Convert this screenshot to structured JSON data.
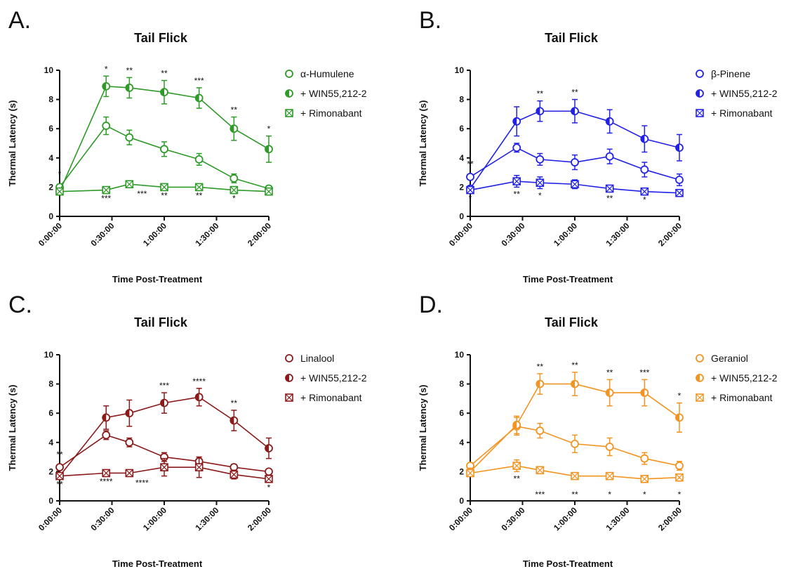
{
  "chart_data": [
    {
      "type": "line",
      "panel_label": "A.",
      "title": "Tail Flick",
      "xlabel": "Time Post-Treatment",
      "ylabel": "Thermal Latency (s)",
      "ylim": [
        0,
        10
      ],
      "yticks": [
        "0",
        "2",
        "4",
        "6",
        "8",
        "10"
      ],
      "xticks": [
        "0:00:00",
        "0:30:00",
        "1:00:00",
        "1:30:00",
        "2:00:00"
      ],
      "xlim_minutes": [
        0,
        120
      ],
      "color": "#2e9a28",
      "grid": false,
      "legend_position": "right",
      "series": [
        {
          "name": "α-Humulene",
          "marker": "open-circle",
          "x": [
            0,
            8,
            12,
            18,
            24,
            30,
            36
          ],
          "y": [
            2.0,
            6.2,
            5.4,
            4.6,
            3.9,
            2.6,
            1.9
          ],
          "err": [
            0.1,
            0.6,
            0.5,
            0.5,
            0.4,
            0.3,
            0.1
          ]
        },
        {
          "name": "+ WIN55,212-2",
          "marker": "half-filled-circle",
          "x": [
            0,
            8,
            12,
            18,
            24,
            30,
            36
          ],
          "y": [
            1.7,
            8.9,
            8.8,
            8.5,
            8.1,
            6.0,
            4.6
          ],
          "err": [
            0.2,
            0.7,
            0.7,
            0.8,
            0.7,
            0.8,
            0.9
          ]
        },
        {
          "name": "+ Rimonabant",
          "marker": "crossed-square",
          "x": [
            0,
            8,
            12,
            18,
            24,
            30,
            36
          ],
          "y": [
            1.7,
            1.8,
            2.2,
            2.0,
            2.0,
            1.8,
            1.7
          ],
          "err": [
            0.1,
            0.1,
            0.1,
            0.1,
            0.1,
            0.1,
            0.1
          ]
        }
      ],
      "annotations": [
        {
          "x": 0,
          "text": "*",
          "position": "above"
        },
        {
          "x": 8,
          "text": "*",
          "position": "top"
        },
        {
          "x": 12,
          "text": "**",
          "position": "top"
        },
        {
          "x": 18,
          "text": "**",
          "position": "top"
        },
        {
          "x": 24,
          "text": "***",
          "position": "top"
        },
        {
          "x": 30,
          "text": "**",
          "position": "top"
        },
        {
          "x": 36,
          "text": "*",
          "position": "top"
        },
        {
          "x": 12,
          "text": "***",
          "position": "mid"
        },
        {
          "x": 8,
          "text": "***",
          "position": "bottom"
        },
        {
          "x": 18,
          "text": "**",
          "position": "bottom"
        },
        {
          "x": 24,
          "text": "**",
          "position": "bottom"
        },
        {
          "x": 30,
          "text": "*",
          "position": "bottom"
        }
      ]
    },
    {
      "type": "line",
      "panel_label": "B.",
      "title": "Tail Flick",
      "xlabel": "Time Post-Treatment",
      "ylabel": "Thermal Latency (s)",
      "ylim": [
        0,
        10
      ],
      "yticks": [
        "0",
        "2",
        "4",
        "6",
        "8",
        "10"
      ],
      "xticks": [
        "0:00:00",
        "0:30:00",
        "1:00:00",
        "1:30:00",
        "2:00:00"
      ],
      "color": "#2222e6",
      "grid": false,
      "legend_position": "right",
      "series": [
        {
          "name": "β-Pinene",
          "marker": "open-circle",
          "x": [
            0,
            8,
            12,
            18,
            24,
            30,
            36
          ],
          "y": [
            2.7,
            4.7,
            3.9,
            3.7,
            4.1,
            3.2,
            2.5
          ],
          "err": [
            0.1,
            0.3,
            0.4,
            0.5,
            0.5,
            0.5,
            0.4
          ]
        },
        {
          "name": "+ WIN55,212-2",
          "marker": "half-filled-circle",
          "x": [
            0,
            8,
            12,
            18,
            24,
            30,
            36
          ],
          "y": [
            1.9,
            6.5,
            7.2,
            7.2,
            6.5,
            5.3,
            4.7
          ],
          "err": [
            0.1,
            1.0,
            0.7,
            0.8,
            0.8,
            0.9,
            0.9
          ]
        },
        {
          "name": "+ Rimonabant",
          "marker": "crossed-square",
          "x": [
            0,
            8,
            12,
            18,
            24,
            30,
            36
          ],
          "y": [
            1.8,
            2.4,
            2.3,
            2.2,
            1.9,
            1.7,
            1.6
          ],
          "err": [
            0.1,
            0.4,
            0.4,
            0.3,
            0.2,
            0.1,
            0.1
          ]
        }
      ],
      "annotations": [
        {
          "x": 0,
          "text": "**",
          "position": "above"
        },
        {
          "x": 12,
          "text": "**",
          "position": "top"
        },
        {
          "x": 18,
          "text": "**",
          "position": "top"
        },
        {
          "x": 0,
          "text": "*",
          "position": "bottom"
        },
        {
          "x": 8,
          "text": "**",
          "position": "bottom"
        },
        {
          "x": 12,
          "text": "*",
          "position": "bottom"
        },
        {
          "x": 24,
          "text": "**",
          "position": "bottom"
        },
        {
          "x": 30,
          "text": "*",
          "position": "bottom"
        }
      ]
    },
    {
      "type": "line",
      "panel_label": "C.",
      "title": "Tail Flick",
      "xlabel": "Time Post-Treatment",
      "ylabel": "Thermal Latency (s)",
      "ylim": [
        0,
        10
      ],
      "yticks": [
        "0",
        "2",
        "4",
        "6",
        "8",
        "10"
      ],
      "xticks": [
        "0:00:00",
        "0:30:00",
        "1:00:00",
        "1:30:00",
        "2:00:00"
      ],
      "color": "#8b1a1a",
      "grid": false,
      "legend_position": "right",
      "series": [
        {
          "name": "Linalool",
          "marker": "open-circle",
          "x": [
            0,
            8,
            12,
            18,
            24,
            30,
            36
          ],
          "y": [
            2.3,
            4.5,
            4.0,
            3.0,
            2.7,
            2.3,
            2.0
          ],
          "err": [
            0.1,
            0.3,
            0.3,
            0.3,
            0.3,
            0.2,
            0.1
          ]
        },
        {
          "name": "+ WIN55,212-2",
          "marker": "half-filled-circle",
          "x": [
            0,
            8,
            12,
            18,
            24,
            30,
            36
          ],
          "y": [
            1.7,
            5.7,
            6.0,
            6.7,
            7.1,
            5.5,
            3.6
          ],
          "err": [
            0.2,
            0.8,
            0.9,
            0.7,
            0.6,
            0.7,
            0.7
          ]
        },
        {
          "name": "+ Rimonabant",
          "marker": "crossed-square",
          "x": [
            0,
            8,
            12,
            18,
            24,
            30,
            36
          ],
          "y": [
            1.7,
            1.9,
            1.9,
            2.3,
            2.3,
            1.8,
            1.5
          ],
          "err": [
            0.1,
            0.1,
            0.2,
            0.6,
            0.7,
            0.3,
            0.1
          ]
        }
      ],
      "annotations": [
        {
          "x": 0,
          "text": "**",
          "position": "above"
        },
        {
          "x": 18,
          "text": "***",
          "position": "top"
        },
        {
          "x": 24,
          "text": "****",
          "position": "top"
        },
        {
          "x": 30,
          "text": "**",
          "position": "top"
        },
        {
          "x": 0,
          "text": "**",
          "position": "bottom"
        },
        {
          "x": 8,
          "text": "****",
          "position": "bottom"
        },
        {
          "x": 12,
          "text": "****",
          "position": "mid"
        },
        {
          "x": 36,
          "text": "*",
          "position": "bottom"
        }
      ]
    },
    {
      "type": "line",
      "panel_label": "D.",
      "title": "Tail Flick",
      "xlabel": "Time Post-Treatment",
      "ylabel": "Thermal Latency (s)",
      "ylim": [
        0,
        10
      ],
      "yticks": [
        "0",
        "2",
        "4",
        "6",
        "8",
        "10"
      ],
      "xticks": [
        "0:00:00",
        "0:30:00",
        "1:00:00",
        "1:30:00",
        "2:00:00"
      ],
      "color": "#f39422",
      "grid": false,
      "legend_position": "right",
      "series": [
        {
          "name": "Geraniol",
          "marker": "open-circle",
          "x": [
            0,
            8,
            12,
            18,
            24,
            30,
            36
          ],
          "y": [
            2.4,
            5.1,
            4.8,
            3.9,
            3.7,
            2.9,
            2.4
          ],
          "err": [
            0.2,
            0.6,
            0.5,
            0.6,
            0.6,
            0.4,
            0.3
          ]
        },
        {
          "name": "+ WIN55,212-2",
          "marker": "half-filled-circle",
          "x": [
            0,
            8,
            12,
            18,
            24,
            30,
            36
          ],
          "y": [
            2.0,
            5.2,
            8.0,
            8.0,
            7.4,
            7.4,
            5.7
          ],
          "err": [
            0.2,
            0.6,
            0.7,
            0.8,
            0.9,
            0.9,
            1.0
          ]
        },
        {
          "name": "+ Rimonabant",
          "marker": "crossed-square",
          "x": [
            0,
            8,
            12,
            18,
            24,
            30,
            36
          ],
          "y": [
            1.9,
            2.4,
            2.1,
            1.7,
            1.7,
            1.5,
            1.6
          ],
          "err": [
            0.2,
            0.4,
            0.2,
            0.1,
            0.1,
            0.1,
            0.1
          ]
        }
      ],
      "annotations": [
        {
          "x": 12,
          "text": "**",
          "position": "top"
        },
        {
          "x": 18,
          "text": "**",
          "position": "top"
        },
        {
          "x": 24,
          "text": "**",
          "position": "top"
        },
        {
          "x": 30,
          "text": "***",
          "position": "top"
        },
        {
          "x": 36,
          "text": "*",
          "position": "top"
        },
        {
          "x": 8,
          "text": "**",
          "position": "bottom"
        },
        {
          "x": 12,
          "text": "***",
          "position": "bottom2"
        },
        {
          "x": 18,
          "text": "**",
          "position": "bottom2"
        },
        {
          "x": 24,
          "text": "*",
          "position": "bottom2"
        },
        {
          "x": 30,
          "text": "*",
          "position": "bottom2"
        },
        {
          "x": 36,
          "text": "*",
          "position": "bottom2"
        }
      ]
    }
  ]
}
